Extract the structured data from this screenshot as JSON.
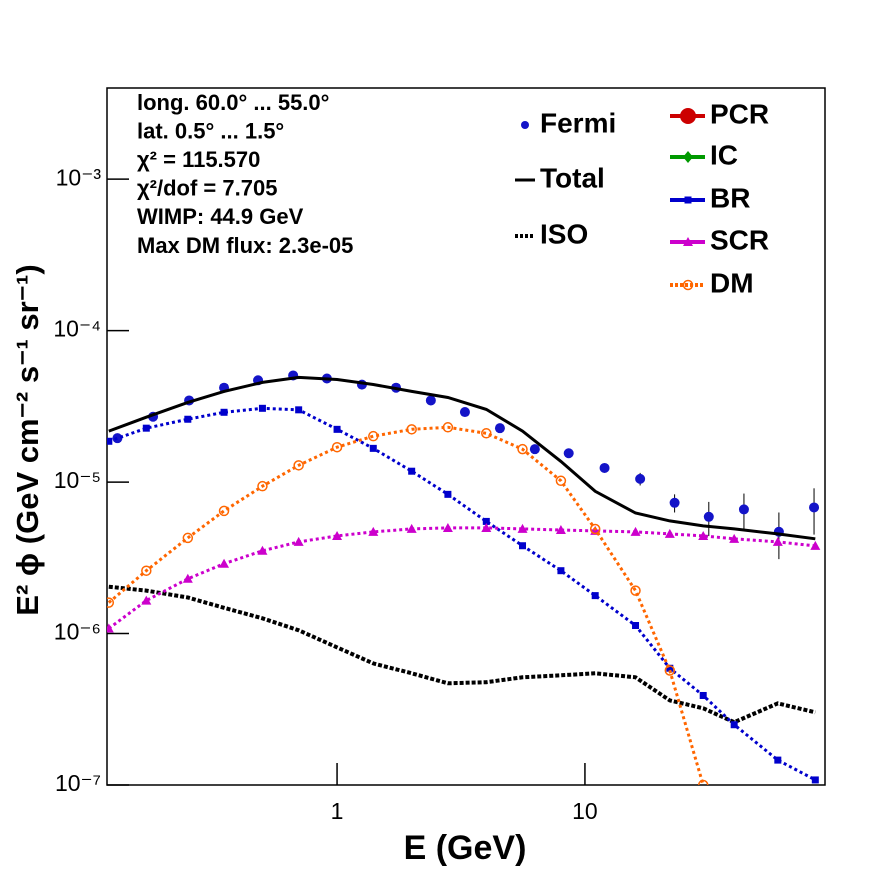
{
  "chart_data": {
    "type": "line",
    "xlog": true,
    "ylog": true,
    "xlim": [
      0.118,
      93
    ],
    "ylim": [
      1e-07,
      0.004
    ],
    "xticks": [
      1,
      10
    ],
    "yticks": [
      {
        "value": 1e-07,
        "label": "10⁻⁷"
      },
      {
        "value": 1e-06,
        "label": "10⁻⁶"
      },
      {
        "value": 1e-05,
        "label": "10⁻⁵"
      },
      {
        "value": 0.0001,
        "label": "10⁻⁴"
      },
      {
        "value": 0.001,
        "label": "10⁻³"
      }
    ],
    "x_label": "E (GeV)",
    "y_label": "E² ϕ (GeV cm⁻² s⁻¹ sr⁻¹)",
    "annotations": [
      "long. 60.0° ... 55.0°",
      "lat. 0.5° ... 1.5°",
      "χ² = 115.570",
      "χ²/dof = 7.705",
      "WIMP: 44.9 GeV",
      "Max DM flux: 2.3e-05"
    ],
    "series": [
      {
        "name": "Fermi",
        "color": "#1414c8",
        "style": "points",
        "x": [
          0.13,
          0.181,
          0.253,
          0.35,
          0.48,
          0.665,
          0.91,
          1.26,
          1.73,
          2.39,
          3.28,
          4.54,
          6.28,
          8.6,
          12,
          16.7,
          23,
          31.6,
          43.8,
          60.6,
          84
        ],
        "values": [
          1.95e-05,
          2.7e-05,
          3.46e-05,
          4.2e-05,
          4.7e-05,
          5.06e-05,
          4.83e-05,
          4.4e-05,
          4.2e-05,
          3.46e-05,
          2.9e-05,
          2.27e-05,
          1.65e-05,
          1.55e-05,
          1.24e-05,
          1.05e-05,
          7.3e-06,
          5.9e-06,
          6.6e-06,
          4.7e-06,
          6.8e-06
        ],
        "errors": [
          6e-07,
          8e-07,
          1e-06,
          1.2e-06,
          1.3e-06,
          1.4e-06,
          1.4e-06,
          1.3e-06,
          1.3e-06,
          1.1e-06,
          1e-06,
          8e-07,
          7e-07,
          6e-07,
          7e-07,
          1e-06,
          1e-06,
          1.5e-06,
          1.8e-06,
          1.6e-06,
          2.3e-06
        ]
      },
      {
        "name": "Total",
        "color": "#000000",
        "style": "line",
        "x": [
          0.12,
          0.17,
          0.25,
          0.35,
          0.5,
          0.7,
          1,
          1.4,
          2,
          2.8,
          4,
          5.6,
          8,
          11,
          16,
          22,
          30,
          40,
          60,
          85
        ],
        "values": [
          2.17e-05,
          2.68e-05,
          3.36e-05,
          3.97e-05,
          4.55e-05,
          4.91e-05,
          4.76e-05,
          4.41e-05,
          3.97e-05,
          3.62e-05,
          3.02e-05,
          2.17e-05,
          1.37e-05,
          8.7e-06,
          6.25e-06,
          5.54e-06,
          5.14e-06,
          4.91e-06,
          4.55e-06,
          4.22e-06
        ]
      },
      {
        "name": "ISO",
        "color": "#000000",
        "style": "dotted",
        "x": [
          0.12,
          0.17,
          0.25,
          0.35,
          0.5,
          0.7,
          1,
          1.4,
          2,
          2.8,
          4,
          5.6,
          8,
          11,
          16,
          22,
          30,
          40,
          60,
          85
        ],
        "values": [
          2.04e-06,
          1.92e-06,
          1.73e-06,
          1.48e-06,
          1.26e-06,
          1.05e-06,
          8.1e-07,
          6.35e-07,
          5.46e-07,
          4.69e-07,
          4.77e-07,
          5.14e-07,
          5.3e-07,
          5.46e-07,
          5.14e-07,
          3.62e-07,
          3.21e-07,
          2.6e-07,
          3.46e-07,
          3.02e-07
        ]
      },
      {
        "name": "PCR",
        "color": "#cc0000",
        "style": "marker",
        "marker": "circle",
        "x": [],
        "values": []
      },
      {
        "name": "IC",
        "color": "#009900",
        "style": "marker",
        "marker": "diamond",
        "x": [],
        "values": []
      },
      {
        "name": "BR",
        "color": "#0000cc",
        "style": "marker",
        "marker": "square",
        "x": [
          0.12,
          0.17,
          0.25,
          0.35,
          0.5,
          0.7,
          1,
          1.4,
          2,
          2.8,
          4,
          5.6,
          8,
          11,
          16,
          22,
          30,
          40,
          60,
          85
        ],
        "values": [
          1.86e-05,
          2.27e-05,
          2.6e-05,
          2.89e-05,
          3.07e-05,
          3e-05,
          2.23e-05,
          1.67e-05,
          1.18e-05,
          8.3e-06,
          5.5e-06,
          3.8e-06,
          2.6e-06,
          1.78e-06,
          1.13e-06,
          5.9e-07,
          3.9e-07,
          2.5e-07,
          1.46e-07,
          1.08e-07
        ]
      },
      {
        "name": "SCR",
        "color": "#cc00cc",
        "style": "marker",
        "marker": "triangle",
        "x": [
          0.12,
          0.17,
          0.25,
          0.35,
          0.5,
          0.7,
          1,
          1.4,
          2,
          2.8,
          4,
          5.6,
          8,
          11,
          16,
          22,
          30,
          40,
          60,
          85
        ],
        "values": [
          1.08e-06,
          1.65e-06,
          2.3e-06,
          2.89e-06,
          3.52e-06,
          4.03e-06,
          4.41e-06,
          4.69e-06,
          4.91e-06,
          4.98e-06,
          4.98e-06,
          4.91e-06,
          4.83e-06,
          4.76e-06,
          4.69e-06,
          4.55e-06,
          4.41e-06,
          4.22e-06,
          4.03e-06,
          3.79e-06
        ]
      },
      {
        "name": "DM",
        "color": "#ff6600",
        "style": "marker",
        "marker": "open-circle",
        "x": [
          0.12,
          0.17,
          0.25,
          0.35,
          0.5,
          0.7,
          1,
          1.4,
          2,
          2.8,
          4,
          5.6,
          8,
          11,
          16,
          22,
          30
        ],
        "values": [
          1.6e-06,
          2.6e-06,
          4.28e-06,
          6.45e-06,
          9.4e-06,
          1.29e-05,
          1.7e-05,
          2.01e-05,
          2.23e-05,
          2.3e-05,
          2.1e-05,
          1.65e-05,
          1.02e-05,
          4.9e-06,
          1.92e-06,
          5.7e-07,
          1e-07
        ]
      }
    ]
  }
}
